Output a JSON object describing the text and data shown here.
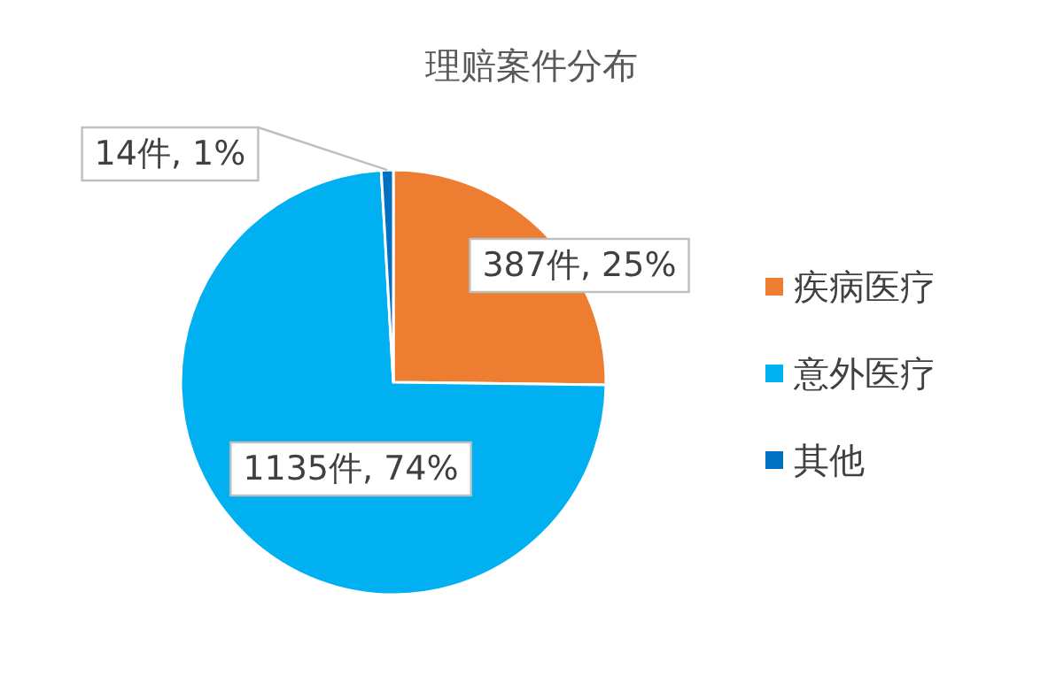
{
  "chart_data": {
    "type": "pie",
    "title": "理赔案件分布",
    "categories": [
      "疾病医疗",
      "意外医疗",
      "其他"
    ],
    "values": [
      387,
      1135,
      14
    ],
    "colors": [
      "#ed7d31",
      "#00b0f0",
      "#0070c0"
    ],
    "value_labels": [
      "387件, 25%",
      "1135件, 74%",
      "14件, 1%"
    ],
    "legend": "right"
  }
}
